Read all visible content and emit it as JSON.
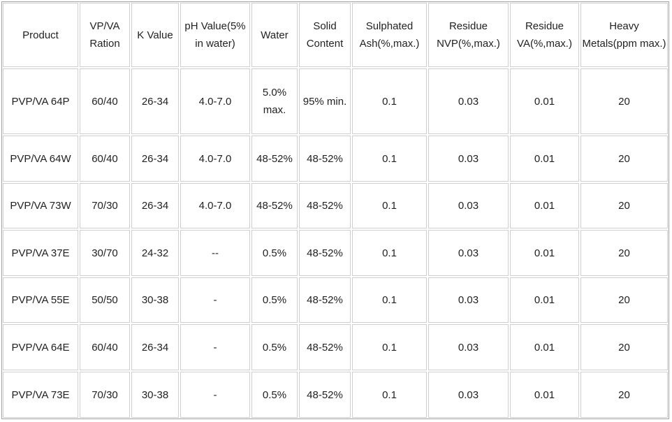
{
  "table": {
    "header": [
      "Product",
      "VP/VA\nRation",
      "K Value",
      "pH Value(5%\nin water)",
      "Water",
      "Solid\nContent",
      "Sulphated\nAsh(%,max.)",
      "Residue\nNVP(%,max.)",
      "Residue\nVA(%,max.)",
      "Heavy\nMetals(ppm max.)"
    ],
    "rows": [
      [
        "PVP/VA 64P",
        "60/40",
        "26-34",
        "4.0-7.0",
        "5.0%\nmax.",
        "95% min.",
        "0.1",
        "0.03",
        "0.01",
        "20"
      ],
      [
        "PVP/VA 64W",
        "60/40",
        "26-34",
        "4.0-7.0",
        "48-52%",
        "48-52%",
        "0.1",
        "0.03",
        "0.01",
        "20"
      ],
      [
        "PVP/VA 73W",
        "70/30",
        "26-34",
        "4.0-7.0",
        "48-52%",
        "48-52%",
        "0.1",
        "0.03",
        "0.01",
        "20"
      ],
      [
        "PVP/VA 37E",
        "30/70",
        "24-32",
        "--",
        "0.5%",
        "48-52%",
        "0.1",
        "0.03",
        "0.01",
        "20"
      ],
      [
        "PVP/VA 55E",
        "50/50",
        "30-38",
        "-",
        "0.5%",
        "48-52%",
        "0.1",
        "0.03",
        "0.01",
        "20"
      ],
      [
        "PVP/VA 64E",
        "60/40",
        "26-34",
        "-",
        "0.5%",
        "48-52%",
        "0.1",
        "0.03",
        "0.01",
        "20"
      ],
      [
        "PVP/VA 73E",
        "70/30",
        "30-38",
        "-",
        "0.5%",
        "48-52%",
        "0.1",
        "0.03",
        "0.01",
        "20"
      ]
    ]
  }
}
